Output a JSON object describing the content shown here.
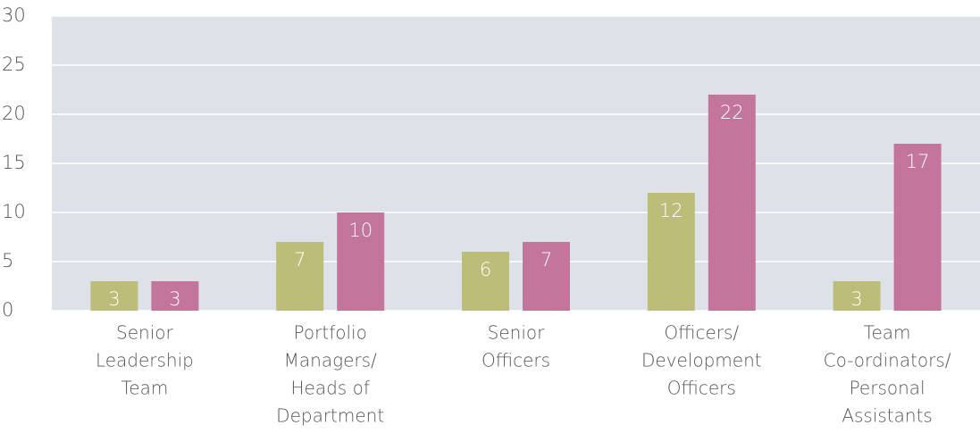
{
  "chart_data": {
    "type": "bar",
    "categories": [
      [
        "Senior",
        "Leadership",
        "Team"
      ],
      [
        "Portfolio",
        "Managers/",
        "Heads of",
        "Department"
      ],
      [
        "Senior",
        "Officers"
      ],
      [
        "Officers/",
        "Development",
        "Officers"
      ],
      [
        "Team",
        "Co-ordinators/",
        "Personal",
        "Assistants"
      ]
    ],
    "series": [
      {
        "color": "#bcbd78",
        "values": [
          3,
          7,
          6,
          12,
          3
        ]
      },
      {
        "color": "#c4759c",
        "values": [
          3,
          10,
          7,
          22,
          17
        ]
      }
    ],
    "ylim": [
      0,
      30
    ],
    "yticks": [
      0,
      5,
      10,
      15,
      20,
      25,
      30
    ],
    "grid": true,
    "background": "#dde1e8"
  }
}
